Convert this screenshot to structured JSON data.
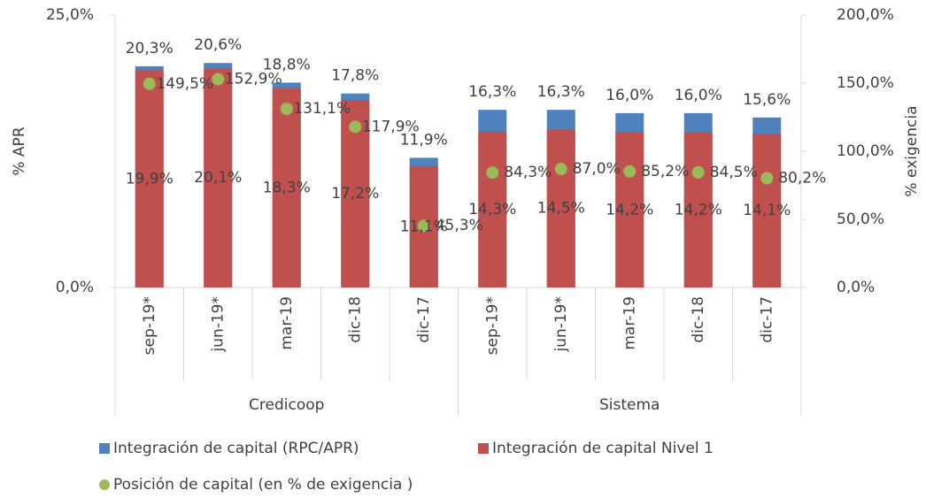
{
  "chart_data": {
    "type": "bar",
    "categories": [
      "sep-19*",
      "jun-19*",
      "mar-19",
      "dic-18",
      "dic-17",
      "sep-19*",
      "jun-19*",
      "mar-19",
      "dic-18",
      "dic-17"
    ],
    "groups": [
      "Credicoop",
      "Sistema"
    ],
    "ylabel": "% APR",
    "y2label": "% exigencia",
    "ylim": [
      0,
      25
    ],
    "yticks": [
      {
        "value": 0,
        "label": "0,0%"
      },
      {
        "value": 25,
        "label": "25,0%"
      }
    ],
    "y2lim": [
      0,
      200
    ],
    "y2ticks": [
      {
        "value": 0,
        "label": "0,0%"
      },
      {
        "value": 50,
        "label": "50,0%"
      },
      {
        "value": 100,
        "label": "100,0%"
      },
      {
        "value": 150,
        "label": "150,0%"
      },
      {
        "value": 200,
        "label": "200,0%"
      }
    ],
    "legend": "bottom",
    "series": [
      {
        "name": "Integración de capital (RPC/APR)",
        "type": "bar",
        "color": "#4f81bd",
        "values": [
          20.3,
          20.6,
          18.8,
          17.8,
          11.9,
          16.3,
          16.3,
          16.0,
          16.0,
          15.6
        ],
        "value_labels": [
          "20,3%",
          "20,6%",
          "18,8%",
          "17,8%",
          "11,9%",
          "16,3%",
          "16,3%",
          "16,0%",
          "16,0%",
          "15,6%"
        ]
      },
      {
        "name": "Integración de capital Nivel 1",
        "type": "bar",
        "color": "#c0504d",
        "values": [
          19.9,
          20.1,
          18.3,
          17.2,
          11.1,
          14.3,
          14.5,
          14.2,
          14.2,
          14.1
        ],
        "value_labels": [
          "19,9%",
          "20,1%",
          "18,3%",
          "17,2%",
          "11,1%",
          "14,3%",
          "14,5%",
          "14,2%",
          "14,2%",
          "14,1%"
        ]
      },
      {
        "name": "Posición de capital (en % de exigencia )",
        "type": "scatter",
        "axis": "y2",
        "color": "#9bbb59",
        "values": [
          149.5,
          152.9,
          131.1,
          117.9,
          45.3,
          84.3,
          87.0,
          85.2,
          84.5,
          80.2
        ],
        "value_labels": [
          "149,5%",
          "152,9%",
          "131,1%",
          "117,9%",
          "45,3%",
          "84,3%",
          "87,0%",
          "85,2%",
          "84,5%",
          "80,2%"
        ]
      }
    ]
  }
}
